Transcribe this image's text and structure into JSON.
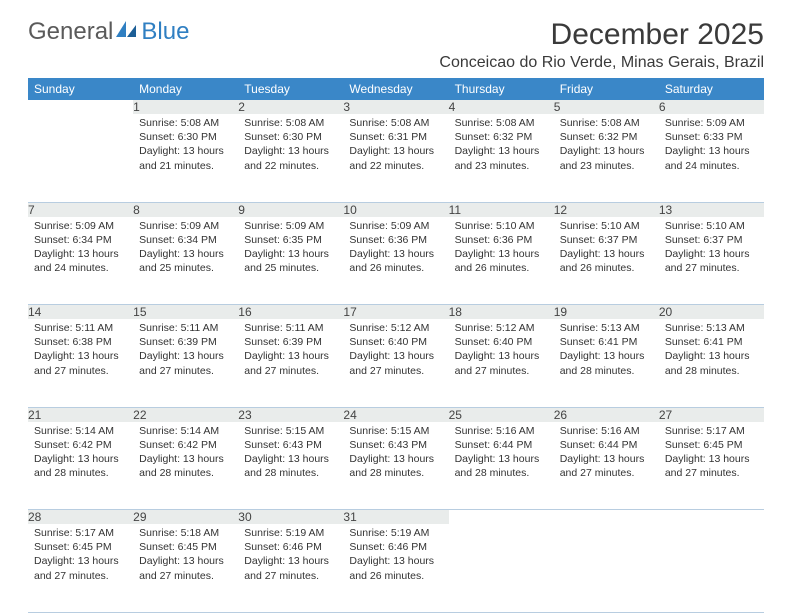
{
  "brand": {
    "part1": "General",
    "part2": "Blue"
  },
  "title": "December 2025",
  "location": "Conceicao do Rio Verde, Minas Gerais, Brazil",
  "colors": {
    "header_bg": "#3a87c8",
    "header_text": "#ffffff",
    "daynum_bg": "#e9eceb",
    "row_divider": "#b8cde0",
    "brand_blue": "#2f7fc2",
    "text": "#333333"
  },
  "fonts": {
    "title_pt": 30,
    "location_pt": 16,
    "dayhead_pt": 12,
    "cell_pt": 10.5
  },
  "dayHeaders": [
    "Sunday",
    "Monday",
    "Tuesday",
    "Wednesday",
    "Thursday",
    "Friday",
    "Saturday"
  ],
  "weeks": [
    [
      null,
      {
        "n": "1",
        "sr": "Sunrise: 5:08 AM",
        "ss": "Sunset: 6:30 PM",
        "d1": "Daylight: 13 hours",
        "d2": "and 21 minutes."
      },
      {
        "n": "2",
        "sr": "Sunrise: 5:08 AM",
        "ss": "Sunset: 6:30 PM",
        "d1": "Daylight: 13 hours",
        "d2": "and 22 minutes."
      },
      {
        "n": "3",
        "sr": "Sunrise: 5:08 AM",
        "ss": "Sunset: 6:31 PM",
        "d1": "Daylight: 13 hours",
        "d2": "and 22 minutes."
      },
      {
        "n": "4",
        "sr": "Sunrise: 5:08 AM",
        "ss": "Sunset: 6:32 PM",
        "d1": "Daylight: 13 hours",
        "d2": "and 23 minutes."
      },
      {
        "n": "5",
        "sr": "Sunrise: 5:08 AM",
        "ss": "Sunset: 6:32 PM",
        "d1": "Daylight: 13 hours",
        "d2": "and 23 minutes."
      },
      {
        "n": "6",
        "sr": "Sunrise: 5:09 AM",
        "ss": "Sunset: 6:33 PM",
        "d1": "Daylight: 13 hours",
        "d2": "and 24 minutes."
      }
    ],
    [
      {
        "n": "7",
        "sr": "Sunrise: 5:09 AM",
        "ss": "Sunset: 6:34 PM",
        "d1": "Daylight: 13 hours",
        "d2": "and 24 minutes."
      },
      {
        "n": "8",
        "sr": "Sunrise: 5:09 AM",
        "ss": "Sunset: 6:34 PM",
        "d1": "Daylight: 13 hours",
        "d2": "and 25 minutes."
      },
      {
        "n": "9",
        "sr": "Sunrise: 5:09 AM",
        "ss": "Sunset: 6:35 PM",
        "d1": "Daylight: 13 hours",
        "d2": "and 25 minutes."
      },
      {
        "n": "10",
        "sr": "Sunrise: 5:09 AM",
        "ss": "Sunset: 6:36 PM",
        "d1": "Daylight: 13 hours",
        "d2": "and 26 minutes."
      },
      {
        "n": "11",
        "sr": "Sunrise: 5:10 AM",
        "ss": "Sunset: 6:36 PM",
        "d1": "Daylight: 13 hours",
        "d2": "and 26 minutes."
      },
      {
        "n": "12",
        "sr": "Sunrise: 5:10 AM",
        "ss": "Sunset: 6:37 PM",
        "d1": "Daylight: 13 hours",
        "d2": "and 26 minutes."
      },
      {
        "n": "13",
        "sr": "Sunrise: 5:10 AM",
        "ss": "Sunset: 6:37 PM",
        "d1": "Daylight: 13 hours",
        "d2": "and 27 minutes."
      }
    ],
    [
      {
        "n": "14",
        "sr": "Sunrise: 5:11 AM",
        "ss": "Sunset: 6:38 PM",
        "d1": "Daylight: 13 hours",
        "d2": "and 27 minutes."
      },
      {
        "n": "15",
        "sr": "Sunrise: 5:11 AM",
        "ss": "Sunset: 6:39 PM",
        "d1": "Daylight: 13 hours",
        "d2": "and 27 minutes."
      },
      {
        "n": "16",
        "sr": "Sunrise: 5:11 AM",
        "ss": "Sunset: 6:39 PM",
        "d1": "Daylight: 13 hours",
        "d2": "and 27 minutes."
      },
      {
        "n": "17",
        "sr": "Sunrise: 5:12 AM",
        "ss": "Sunset: 6:40 PM",
        "d1": "Daylight: 13 hours",
        "d2": "and 27 minutes."
      },
      {
        "n": "18",
        "sr": "Sunrise: 5:12 AM",
        "ss": "Sunset: 6:40 PM",
        "d1": "Daylight: 13 hours",
        "d2": "and 27 minutes."
      },
      {
        "n": "19",
        "sr": "Sunrise: 5:13 AM",
        "ss": "Sunset: 6:41 PM",
        "d1": "Daylight: 13 hours",
        "d2": "and 28 minutes."
      },
      {
        "n": "20",
        "sr": "Sunrise: 5:13 AM",
        "ss": "Sunset: 6:41 PM",
        "d1": "Daylight: 13 hours",
        "d2": "and 28 minutes."
      }
    ],
    [
      {
        "n": "21",
        "sr": "Sunrise: 5:14 AM",
        "ss": "Sunset: 6:42 PM",
        "d1": "Daylight: 13 hours",
        "d2": "and 28 minutes."
      },
      {
        "n": "22",
        "sr": "Sunrise: 5:14 AM",
        "ss": "Sunset: 6:42 PM",
        "d1": "Daylight: 13 hours",
        "d2": "and 28 minutes."
      },
      {
        "n": "23",
        "sr": "Sunrise: 5:15 AM",
        "ss": "Sunset: 6:43 PM",
        "d1": "Daylight: 13 hours",
        "d2": "and 28 minutes."
      },
      {
        "n": "24",
        "sr": "Sunrise: 5:15 AM",
        "ss": "Sunset: 6:43 PM",
        "d1": "Daylight: 13 hours",
        "d2": "and 28 minutes."
      },
      {
        "n": "25",
        "sr": "Sunrise: 5:16 AM",
        "ss": "Sunset: 6:44 PM",
        "d1": "Daylight: 13 hours",
        "d2": "and 28 minutes."
      },
      {
        "n": "26",
        "sr": "Sunrise: 5:16 AM",
        "ss": "Sunset: 6:44 PM",
        "d1": "Daylight: 13 hours",
        "d2": "and 27 minutes."
      },
      {
        "n": "27",
        "sr": "Sunrise: 5:17 AM",
        "ss": "Sunset: 6:45 PM",
        "d1": "Daylight: 13 hours",
        "d2": "and 27 minutes."
      }
    ],
    [
      {
        "n": "28",
        "sr": "Sunrise: 5:17 AM",
        "ss": "Sunset: 6:45 PM",
        "d1": "Daylight: 13 hours",
        "d2": "and 27 minutes."
      },
      {
        "n": "29",
        "sr": "Sunrise: 5:18 AM",
        "ss": "Sunset: 6:45 PM",
        "d1": "Daylight: 13 hours",
        "d2": "and 27 minutes."
      },
      {
        "n": "30",
        "sr": "Sunrise: 5:19 AM",
        "ss": "Sunset: 6:46 PM",
        "d1": "Daylight: 13 hours",
        "d2": "and 27 minutes."
      },
      {
        "n": "31",
        "sr": "Sunrise: 5:19 AM",
        "ss": "Sunset: 6:46 PM",
        "d1": "Daylight: 13 hours",
        "d2": "and 26 minutes."
      },
      null,
      null,
      null
    ]
  ]
}
